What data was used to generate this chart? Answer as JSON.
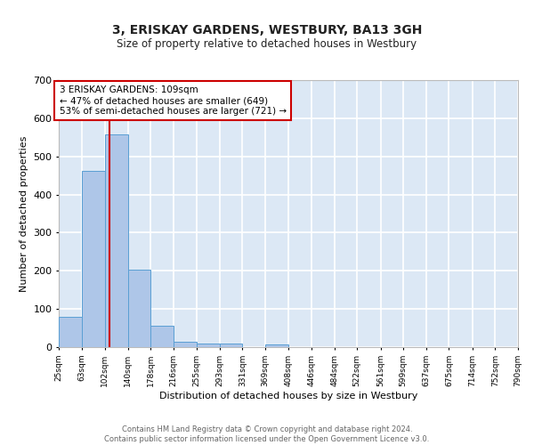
{
  "title": "3, ERISKAY GARDENS, WESTBURY, BA13 3GH",
  "subtitle": "Size of property relative to detached houses in Westbury",
  "xlabel": "Distribution of detached houses by size in Westbury",
  "ylabel": "Number of detached properties",
  "footer": "Contains HM Land Registry data © Crown copyright and database right 2024.\nContains public sector information licensed under the Open Government Licence v3.0.",
  "bar_edges": [
    25,
    63,
    102,
    140,
    178,
    216,
    255,
    293,
    331,
    369,
    408,
    446,
    484,
    522,
    561,
    599,
    637,
    675,
    714,
    752,
    790
  ],
  "bar_heights": [
    80,
    462,
    557,
    204,
    57,
    14,
    9,
    9,
    0,
    8,
    0,
    0,
    0,
    0,
    0,
    0,
    0,
    0,
    0,
    0
  ],
  "bar_color": "#aec6e8",
  "bar_edge_color": "#5a9fd4",
  "bg_color": "#dce8f5",
  "grid_color": "#ffffff",
  "fig_bg_color": "#ffffff",
  "vline_x": 109,
  "vline_color": "#cc0000",
  "annotation_text": "3 ERISKAY GARDENS: 109sqm\n← 47% of detached houses are smaller (649)\n53% of semi-detached houses are larger (721) →",
  "annotation_box_color": "#ffffff",
  "annotation_box_edge": "#cc0000",
  "ylim": [
    0,
    700
  ],
  "yticks": [
    0,
    100,
    200,
    300,
    400,
    500,
    600,
    700
  ],
  "tick_labels": [
    "25sqm",
    "63sqm",
    "102sqm",
    "140sqm",
    "178sqm",
    "216sqm",
    "255sqm",
    "293sqm",
    "331sqm",
    "369sqm",
    "408sqm",
    "446sqm",
    "484sqm",
    "522sqm",
    "561sqm",
    "599sqm",
    "637sqm",
    "675sqm",
    "714sqm",
    "752sqm",
    "790sqm"
  ]
}
